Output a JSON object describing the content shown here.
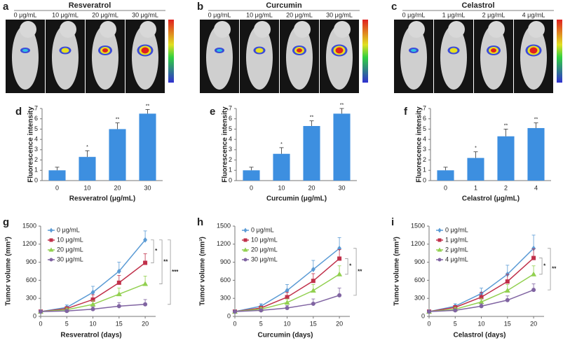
{
  "image_panels": [
    {
      "letter": "a",
      "title": "Resveratrol",
      "labels": [
        "0 μg/mL",
        "10 μg/mL",
        "20 μg/mL",
        "30 μg/mL"
      ]
    },
    {
      "letter": "b",
      "title": "Curcumin",
      "labels": [
        "0 μg/mL",
        "10 μg/mL",
        "20 μg/mL",
        "30 μg/mL"
      ]
    },
    {
      "letter": "c",
      "title": "Celastrol",
      "labels": [
        "0 μg/mL",
        "1 μg/mL",
        "2 μg/mL",
        "4 μg/mL"
      ]
    }
  ],
  "chart_data": [
    {
      "type": "bar",
      "letter": "d",
      "xlabel": "Resveratrol (μg/mL)",
      "ylabel": "Fluorescence intensity",
      "color": "#3d8fe0",
      "categories": [
        "0",
        "10",
        "20",
        "30"
      ],
      "values": [
        1,
        2.3,
        5,
        6.5
      ],
      "errors": [
        0.3,
        0.6,
        0.6,
        0.4
      ],
      "annotations": [
        null,
        "*",
        "**",
        "**"
      ],
      "ylim": [
        0,
        7
      ],
      "yticks": [
        0,
        1,
        2,
        3,
        4,
        5,
        6,
        7
      ]
    },
    {
      "type": "bar",
      "letter": "e",
      "xlabel": "Curcumin (μg/mL)",
      "ylabel": "Fluorescence intensity",
      "color": "#3d8fe0",
      "categories": [
        "0",
        "10",
        "20",
        "30"
      ],
      "values": [
        1,
        2.6,
        5.3,
        6.5
      ],
      "errors": [
        0.3,
        0.6,
        0.5,
        0.5
      ],
      "annotations": [
        null,
        "*",
        "**",
        "**"
      ],
      "ylim": [
        0,
        7
      ],
      "yticks": [
        0,
        1,
        2,
        3,
        4,
        5,
        6,
        7
      ]
    },
    {
      "type": "bar",
      "letter": "f",
      "xlabel": "Celastrol (μg/mL)",
      "ylabel": "Fluorescence intensity",
      "color": "#3d8fe0",
      "categories": [
        "0",
        "1",
        "2",
        "4"
      ],
      "values": [
        1,
        2.2,
        4.3,
        5.1
      ],
      "errors": [
        0.3,
        0.6,
        0.7,
        0.5
      ],
      "annotations": [
        null,
        "*",
        "**",
        "**"
      ],
      "ylim": [
        0,
        7
      ],
      "yticks": [
        0,
        1,
        2,
        3,
        4,
        5,
        6,
        7
      ]
    },
    {
      "type": "line",
      "letter": "g",
      "xlabel": "Resveratrol (days)",
      "ylabel": "Tumor volume (mm³)",
      "x": [
        0,
        5,
        10,
        15,
        20
      ],
      "xlim": [
        0,
        22
      ],
      "xticks": [
        0,
        5,
        10,
        15,
        20
      ],
      "ylim": [
        0,
        1500
      ],
      "yticks": [
        0,
        300,
        600,
        900,
        1200,
        1500
      ],
      "series": [
        {
          "name": "0 μg/mL",
          "color": "#5b9bd5",
          "marker": "diamond",
          "values": [
            80,
            150,
            400,
            750,
            1270
          ],
          "errors": [
            20,
            40,
            100,
            150,
            150
          ]
        },
        {
          "name": "10 μg/mL",
          "color": "#c0304a",
          "marker": "square",
          "values": [
            80,
            130,
            280,
            560,
            890
          ],
          "errors": [
            20,
            30,
            80,
            120,
            150
          ]
        },
        {
          "name": "20 μg/mL",
          "color": "#92d050",
          "marker": "triangle",
          "values": [
            80,
            110,
            200,
            370,
            540
          ],
          "errors": [
            20,
            30,
            60,
            100,
            130
          ]
        },
        {
          "name": "30 μg/mL",
          "color": "#8064a2",
          "marker": "circle",
          "values": [
            80,
            90,
            120,
            170,
            200
          ],
          "errors": [
            20,
            20,
            40,
            60,
            80
          ]
        }
      ],
      "brackets": [
        {
          "between": [
            0,
            1
          ],
          "label": "*"
        },
        {
          "between": [
            0,
            2
          ],
          "label": "**"
        },
        {
          "between": [
            0,
            3
          ],
          "label": "***"
        }
      ]
    },
    {
      "type": "line",
      "letter": "h",
      "xlabel": "Curcumin (days)",
      "ylabel": "Tumor volume (mm³)",
      "x": [
        0,
        5,
        10,
        15,
        20
      ],
      "xlim": [
        0,
        22
      ],
      "xticks": [
        0,
        5,
        10,
        15,
        20
      ],
      "ylim": [
        0,
        1500
      ],
      "yticks": [
        0,
        300,
        600,
        900,
        1200,
        1500
      ],
      "series": [
        {
          "name": "0 μg/mL",
          "color": "#5b9bd5",
          "marker": "diamond",
          "values": [
            80,
            170,
            430,
            780,
            1130
          ],
          "errors": [
            20,
            40,
            100,
            150,
            180
          ]
        },
        {
          "name": "10 μg/mL",
          "color": "#c0304a",
          "marker": "square",
          "values": [
            80,
            140,
            320,
            590,
            960
          ],
          "errors": [
            20,
            30,
            80,
            120,
            150
          ]
        },
        {
          "name": "20 μg/mL",
          "color": "#92d050",
          "marker": "triangle",
          "values": [
            80,
            120,
            230,
            430,
            700
          ],
          "errors": [
            20,
            30,
            60,
            100,
            140
          ]
        },
        {
          "name": "30 μg/mL",
          "color": "#8064a2",
          "marker": "circle",
          "values": [
            80,
            100,
            140,
            210,
            350
          ],
          "errors": [
            20,
            20,
            40,
            80,
            120
          ]
        }
      ],
      "brackets": [
        {
          "between": [
            1,
            2
          ],
          "label": "*"
        },
        {
          "between": [
            0,
            3
          ],
          "label": "**"
        }
      ]
    },
    {
      "type": "line",
      "letter": "i",
      "xlabel": "Celastrol (days)",
      "ylabel": "Tumor volume (mm³)",
      "x": [
        0,
        5,
        10,
        15,
        20
      ],
      "xlim": [
        0,
        22
      ],
      "xticks": [
        0,
        5,
        10,
        15,
        20
      ],
      "ylim": [
        0,
        1500
      ],
      "yticks": [
        0,
        300,
        600,
        900,
        1200,
        1500
      ],
      "series": [
        {
          "name": "0 μg/mL",
          "color": "#5b9bd5",
          "marker": "diamond",
          "values": [
            80,
            170,
            380,
            700,
            1130
          ],
          "errors": [
            20,
            40,
            90,
            150,
            220
          ]
        },
        {
          "name": "1 μg/mL",
          "color": "#c0304a",
          "marker": "square",
          "values": [
            80,
            150,
            320,
            580,
            970
          ],
          "errors": [
            20,
            30,
            80,
            120,
            150
          ]
        },
        {
          "name": "2 μg/mL",
          "color": "#92d050",
          "marker": "triangle",
          "values": [
            80,
            120,
            240,
            430,
            700
          ],
          "errors": [
            20,
            30,
            60,
            100,
            140
          ]
        },
        {
          "name": "4 μg/mL",
          "color": "#8064a2",
          "marker": "circle",
          "values": [
            80,
            100,
            170,
            270,
            440
          ],
          "errors": [
            20,
            20,
            40,
            70,
            100
          ]
        }
      ],
      "brackets": [
        {
          "between": [
            1,
            2
          ],
          "label": "*"
        },
        {
          "between": [
            0,
            3
          ],
          "label": "**"
        }
      ]
    }
  ]
}
